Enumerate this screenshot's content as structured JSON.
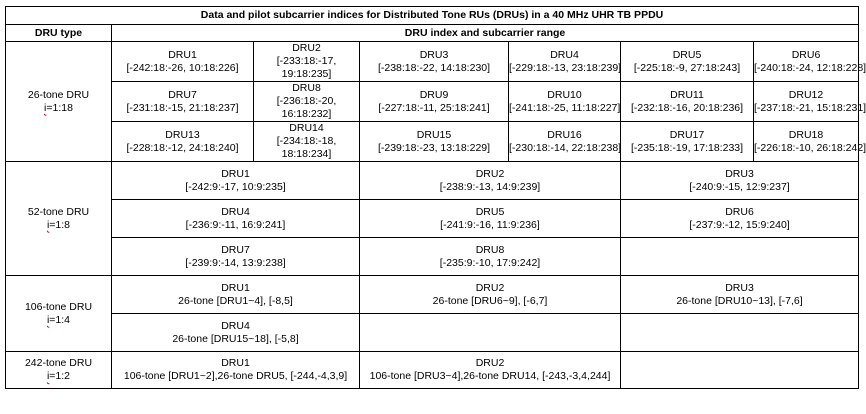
{
  "table": {
    "title": "Data and pilot subcarrier indices for Distributed Tone RUs (DRUs)  in a 40 MHz UHR TB PPDU",
    "col_headers": {
      "type": "DRU type",
      "range": "DRU index and subcarrier range"
    },
    "groups": [
      {
        "type": "26-tone DRU",
        "index_prefix": "i",
        "index_range": "=1:18",
        "rows": [
          [
            {
              "name": "DRU1",
              "lines": [
                "[-242:18:-26, 10:18:226]"
              ]
            },
            {
              "name": "DRU2",
              "lines": [
                "[-233:18:-17,",
                "19:18:235]"
              ]
            },
            {
              "name": "DRU3",
              "lines": [
                "[-238:18:-22, 14:18:230]"
              ]
            },
            {
              "name": "DRU4",
              "lines": [
                "[-229:18:-13, 23:18:239]"
              ]
            },
            {
              "name": "DRU5",
              "lines": [
                "[-225:18:-9, 27:18:243]"
              ]
            },
            {
              "name": "DRU6",
              "lines": [
                "[-240:18:-24, 12:18:228]"
              ]
            }
          ],
          [
            {
              "name": "DRU7",
              "lines": [
                "[-231:18:-15, 21:18:237]"
              ]
            },
            {
              "name": "DRU8",
              "lines": [
                "[-236:18:-20,",
                "16:18:232]"
              ]
            },
            {
              "name": "DRU9",
              "lines": [
                "[-227:18:-11, 25:18:241]"
              ]
            },
            {
              "name": "DRU10",
              "lines": [
                "[-241:18:-25, 11:18:227]"
              ]
            },
            {
              "name": "DRU11",
              "lines": [
                "[-232:18:-16, 20:18:236]"
              ]
            },
            {
              "name": "DRU12",
              "lines": [
                "[-237:18:-21, 15:18:231]"
              ]
            }
          ],
          [
            {
              "name": "DRU13",
              "lines": [
                "[-228:18:-12, 24:18:240]"
              ]
            },
            {
              "name": "DRU14",
              "lines": [
                "[-234:18:-18,",
                "18:18:234]"
              ]
            },
            {
              "name": "DRU15",
              "lines": [
                "[-239:18:-23, 13:18:229]"
              ]
            },
            {
              "name": "DRU16",
              "lines": [
                "[-230:18:-14, 22:18:238]"
              ]
            },
            {
              "name": "DRU17",
              "lines": [
                "[-235:18:-19, 17:18:233]"
              ]
            },
            {
              "name": "DRU18",
              "lines": [
                "[-226:18:-10, 26:18:242]"
              ]
            }
          ]
        ]
      },
      {
        "type": "52-tone DRU",
        "index_prefix": "i",
        "index_range": "=1:8",
        "rows": [
          [
            {
              "name": "DRU1",
              "lines": [
                "[-242:9:-17, 10:9:235]"
              ]
            },
            {
              "name": "DRU2",
              "lines": [
                "[-238:9:-13, 14:9:239]"
              ]
            },
            {
              "name": "DRU3",
              "lines": [
                "[-240:9:-15, 12:9:237]"
              ]
            }
          ],
          [
            {
              "name": "DRU4",
              "lines": [
                "[-236:9:-11, 16:9:241]"
              ]
            },
            {
              "name": "DRU5",
              "lines": [
                "[-241:9:-16, 11:9:236]"
              ]
            },
            {
              "name": "DRU6",
              "lines": [
                "[-237:9:-12, 15:9:240]"
              ]
            }
          ],
          [
            {
              "name": "DRU7",
              "lines": [
                "[-239:9:-14, 13:9:238]"
              ]
            },
            {
              "name": "DRU8",
              "lines": [
                "[-235:9:-10, 17:9:242]"
              ]
            },
            {
              "name": "",
              "lines": []
            }
          ]
        ]
      },
      {
        "type": "106-tone DRU",
        "index_prefix": "i",
        "index_range": "=1:4",
        "rows": [
          [
            {
              "name": "DRU1",
              "lines": [
                "26-tone [DRU1~4], [-8,5]"
              ]
            },
            {
              "name": "DRU2",
              "lines": [
                "26-tone [DRU6~9], [-6,7]"
              ]
            },
            {
              "name": "DRU3",
              "lines": [
                "26-tone [DRU10~13], [-7,6]"
              ]
            }
          ],
          [
            {
              "name": "DRU4",
              "lines": [
                "26-tone [DRU15~18], [-5,8]"
              ]
            },
            {
              "name": "",
              "lines": []
            },
            {
              "name": "",
              "lines": []
            }
          ]
        ]
      },
      {
        "type": "242-tone DRU",
        "index_prefix": "i",
        "index_range": "=1:2",
        "rows": [
          [
            {
              "name": "DRU1",
              "lines": [
                "106-tone [DRU1~2],26-tone DRU5, [-244,-4,3,9]"
              ]
            },
            {
              "name": "DRU2",
              "lines": [
                "106-tone [DRU3~4],26-tone DRU14, [-243,-3,4,244]"
              ]
            },
            {
              "name": "",
              "lines": []
            }
          ]
        ]
      }
    ]
  }
}
